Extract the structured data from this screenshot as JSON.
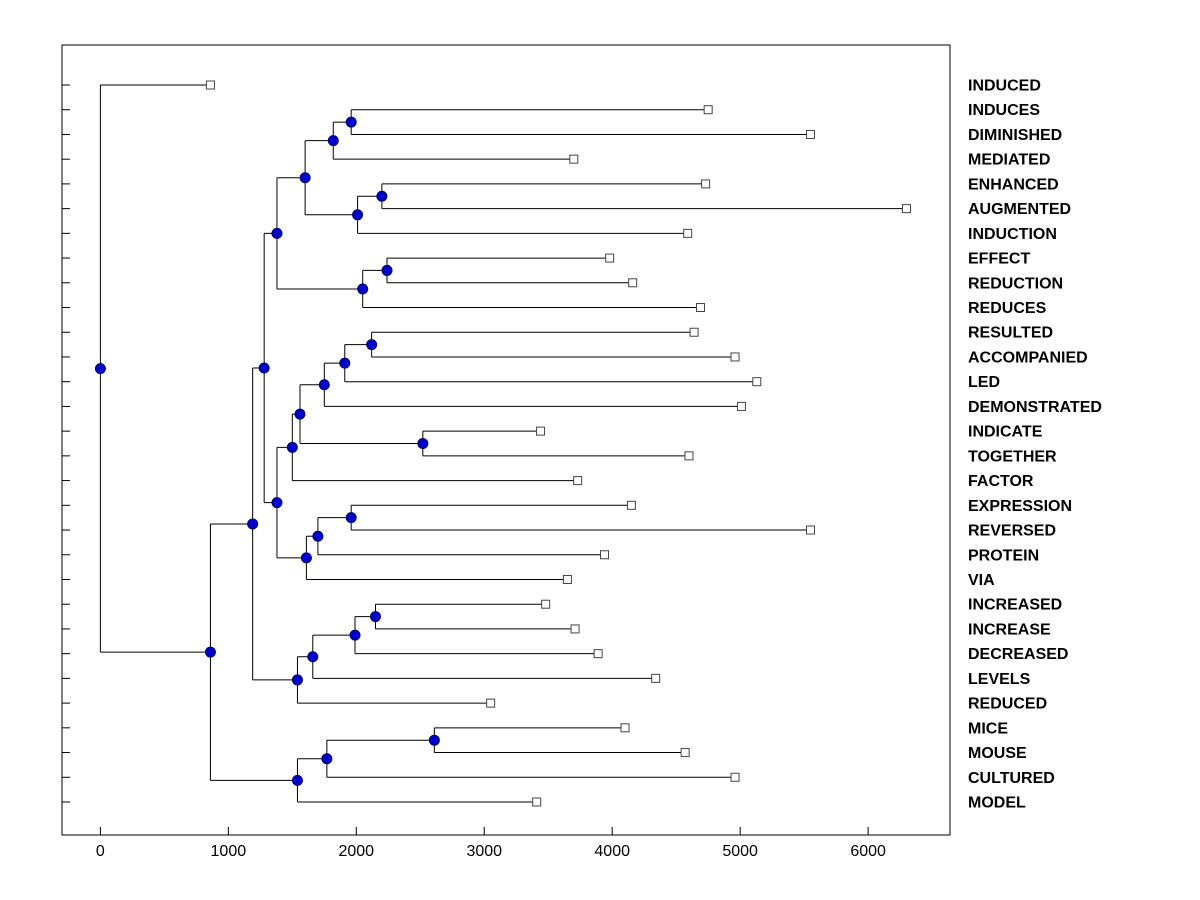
{
  "figure": {
    "background": "#ffffff",
    "title": ""
  },
  "chart_data": {
    "type": "dendrogram",
    "orientation": "horizontal-root-left",
    "title": "",
    "xlabel": "",
    "ylabel": "",
    "grid": false,
    "xlim": [
      -300,
      6640
    ],
    "xticks": [
      0,
      1000,
      2000,
      3000,
      4000,
      5000,
      6000
    ],
    "line_color": "#000000",
    "label_color": "#000000",
    "node_marker": {
      "shape": "circle",
      "fill": "#0000cc",
      "stroke": "#000066",
      "radius": 5
    },
    "leaf_marker": {
      "shape": "square",
      "fill": "#ffffff",
      "stroke": "#444444",
      "size": 8
    },
    "leaves": [
      {
        "label": "INDUCED",
        "value": 860
      },
      {
        "label": "INDUCES",
        "value": 4750
      },
      {
        "label": "DIMINISHED",
        "value": 5550
      },
      {
        "label": "MEDIATED",
        "value": 3700
      },
      {
        "label": "ENHANCED",
        "value": 4730
      },
      {
        "label": "AUGMENTED",
        "value": 6300
      },
      {
        "label": "INDUCTION",
        "value": 4590
      },
      {
        "label": "EFFECT",
        "value": 3980
      },
      {
        "label": "REDUCTION",
        "value": 4160
      },
      {
        "label": "REDUCES",
        "value": 4690
      },
      {
        "label": "RESULTED",
        "value": 4640
      },
      {
        "label": "ACCOMPANIED",
        "value": 4960
      },
      {
        "label": "LED",
        "value": 5130
      },
      {
        "label": "DEMONSTRATED",
        "value": 5010
      },
      {
        "label": "INDICATE",
        "value": 3440
      },
      {
        "label": "TOGETHER",
        "value": 4600
      },
      {
        "label": "FACTOR",
        "value": 3730
      },
      {
        "label": "EXPRESSION",
        "value": 4150
      },
      {
        "label": "REVERSED",
        "value": 5550
      },
      {
        "label": "PROTEIN",
        "value": 3940
      },
      {
        "label": "VIA",
        "value": 3650
      },
      {
        "label": "INCREASED",
        "value": 3480
      },
      {
        "label": "INCREASE",
        "value": 3710
      },
      {
        "label": "DECREASED",
        "value": 3890
      },
      {
        "label": "LEVELS",
        "value": 4340
      },
      {
        "label": "REDUCED",
        "value": 3050
      },
      {
        "label": "MICE",
        "value": 4100
      },
      {
        "label": "MOUSE",
        "value": 4570
      },
      {
        "label": "CULTURED",
        "value": 4960
      },
      {
        "label": "MODEL",
        "value": 3410
      }
    ],
    "tree": {
      "d": 0,
      "children": [
        {
          "leaf": 0
        },
        {
          "d": 860,
          "children": [
            {
              "d": 1190,
              "children": [
                {
                  "d": 1280,
                  "children": [
                    {
                      "d": 1380,
                      "children": [
                        {
                          "d": 1600,
                          "children": [
                            {
                              "d": 1820,
                              "children": [
                                {
                                  "d": 1960,
                                  "children": [
                                    {
                                      "leaf": 1
                                    },
                                    {
                                      "leaf": 2
                                    }
                                  ]
                                },
                                {
                                  "leaf": 3
                                }
                              ]
                            },
                            {
                              "d": 2010,
                              "children": [
                                {
                                  "d": 2200,
                                  "children": [
                                    {
                                      "leaf": 4
                                    },
                                    {
                                      "leaf": 5
                                    }
                                  ]
                                },
                                {
                                  "leaf": 6
                                }
                              ]
                            }
                          ]
                        },
                        {
                          "d": 2050,
                          "children": [
                            {
                              "d": 2240,
                              "children": [
                                {
                                  "leaf": 7
                                },
                                {
                                  "leaf": 8
                                }
                              ]
                            },
                            {
                              "leaf": 9
                            }
                          ]
                        }
                      ]
                    },
                    {
                      "d": 1380,
                      "children": [
                        {
                          "d": 1500,
                          "children": [
                            {
                              "d": 1560,
                              "children": [
                                {
                                  "d": 1750,
                                  "children": [
                                    {
                                      "d": 1910,
                                      "children": [
                                        {
                                          "d": 2120,
                                          "children": [
                                            {
                                              "leaf": 10
                                            },
                                            {
                                              "leaf": 11
                                            }
                                          ]
                                        },
                                        {
                                          "leaf": 12
                                        }
                                      ]
                                    },
                                    {
                                      "leaf": 13
                                    }
                                  ]
                                },
                                {
                                  "d": 2520,
                                  "children": [
                                    {
                                      "leaf": 14
                                    },
                                    {
                                      "leaf": 15
                                    }
                                  ]
                                }
                              ]
                            },
                            {
                              "leaf": 16
                            }
                          ]
                        },
                        {
                          "d": 1610,
                          "children": [
                            {
                              "d": 1700,
                              "children": [
                                {
                                  "d": 1960,
                                  "children": [
                                    {
                                      "leaf": 17
                                    },
                                    {
                                      "leaf": 18
                                    }
                                  ]
                                },
                                {
                                  "leaf": 19
                                }
                              ]
                            },
                            {
                              "leaf": 20
                            }
                          ]
                        }
                      ]
                    }
                  ]
                },
                {
                  "d": 1540,
                  "children": [
                    {
                      "d": 1660,
                      "children": [
                        {
                          "d": 1990,
                          "children": [
                            {
                              "d": 2150,
                              "children": [
                                {
                                  "leaf": 21
                                },
                                {
                                  "leaf": 22
                                }
                              ]
                            },
                            {
                              "leaf": 23
                            }
                          ]
                        },
                        {
                          "leaf": 24
                        }
                      ]
                    },
                    {
                      "leaf": 25
                    }
                  ]
                }
              ]
            },
            {
              "d": 1540,
              "children": [
                {
                  "d": 1770,
                  "children": [
                    {
                      "d": 2610,
                      "children": [
                        {
                          "leaf": 26
                        },
                        {
                          "leaf": 27
                        }
                      ]
                    },
                    {
                      "leaf": 28
                    }
                  ]
                },
                {
                  "leaf": 29
                }
              ]
            }
          ]
        }
      ]
    }
  }
}
